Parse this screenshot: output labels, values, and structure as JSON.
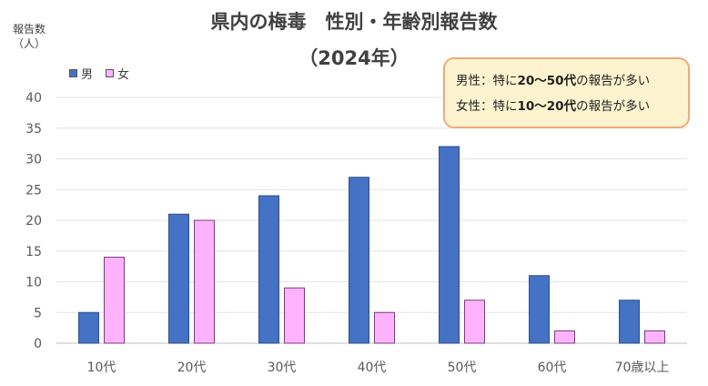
{
  "chart_data": {
    "type": "bar",
    "title": "県内の梅毒　性別・年齢別報告数",
    "subtitle": "（2024年）",
    "ylabel_line1": "報告数",
    "ylabel_line2": "（人）",
    "categories": [
      "10代",
      "20代",
      "30代",
      "40代",
      "50代",
      "60代",
      "70歳以上"
    ],
    "series": [
      {
        "name": "男",
        "values": [
          5,
          21,
          24,
          27,
          32,
          11,
          7
        ],
        "color": "#4472c4"
      },
      {
        "name": "女",
        "values": [
          14,
          20,
          9,
          5,
          7,
          2,
          2
        ],
        "color": "#ffb3ff"
      }
    ],
    "ylim": [
      0,
      40
    ],
    "yticks": [
      0,
      5,
      10,
      15,
      20,
      25,
      30,
      35,
      40
    ],
    "grid": true,
    "legend": "top-left"
  },
  "callout": {
    "line1": {
      "pre": "男性：特に",
      "bold": "20～50代",
      "post": "の報告が多い"
    },
    "line2": {
      "pre": "女性：特に",
      "bold": "10～20代",
      "post": "の報告が多い"
    }
  }
}
